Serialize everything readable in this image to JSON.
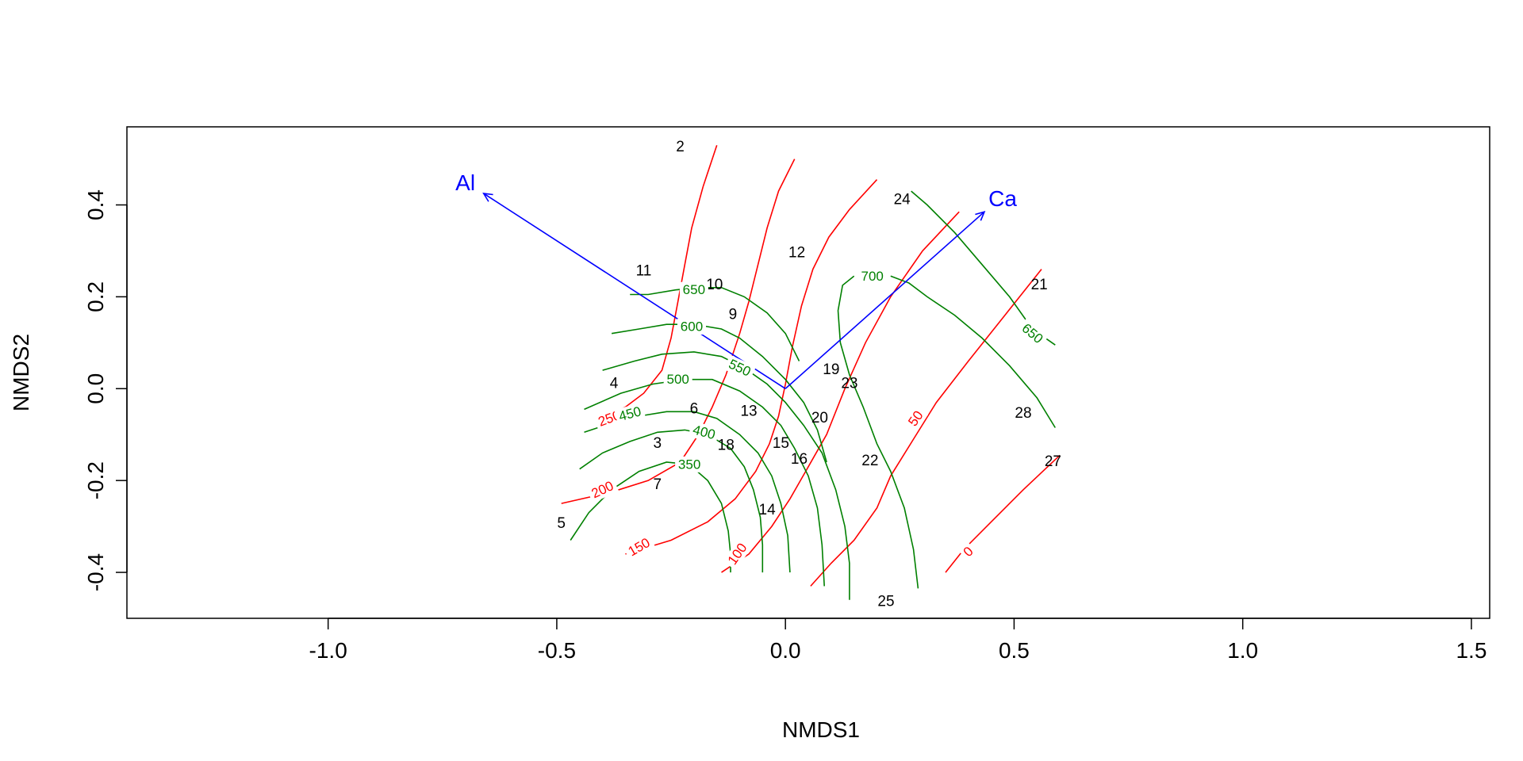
{
  "chart_data": {
    "type": "scatter",
    "title": "",
    "xlabel": "NMDS1",
    "ylabel": "NMDS2",
    "xlim": [
      -1.44,
      1.54
    ],
    "ylim": [
      -0.5,
      0.57
    ],
    "x_ticks": [
      -1.0,
      -0.5,
      0.0,
      0.5,
      1.0,
      1.5
    ],
    "x_tick_labels": [
      "-1.0",
      "-0.5",
      "0.0",
      "0.5",
      "1.0",
      "1.5"
    ],
    "y_ticks": [
      -0.4,
      -0.2,
      0.0,
      0.2,
      0.4
    ],
    "y_tick_labels": [
      "-0.4",
      "-0.2",
      "0.0",
      "0.2",
      "0.4"
    ],
    "grid": false,
    "colors": {
      "sites": "#000000",
      "vectors": "#0000ff",
      "al_contours": "#ff0000",
      "ca_contours": "#008000"
    },
    "sites": [
      {
        "label": "2",
        "x": -0.23,
        "y": 0.525
      },
      {
        "label": "11",
        "x": -0.31,
        "y": 0.255
      },
      {
        "label": "10",
        "x": -0.155,
        "y": 0.225
      },
      {
        "label": "9",
        "x": -0.115,
        "y": 0.16
      },
      {
        "label": "12",
        "x": 0.025,
        "y": 0.295
      },
      {
        "label": "24",
        "x": 0.255,
        "y": 0.41
      },
      {
        "label": "21",
        "x": 0.555,
        "y": 0.225
      },
      {
        "label": "4",
        "x": -0.375,
        "y": 0.01
      },
      {
        "label": "19",
        "x": 0.1,
        "y": 0.04
      },
      {
        "label": "23",
        "x": 0.14,
        "y": 0.01
      },
      {
        "label": "6",
        "x": -0.2,
        "y": -0.045
      },
      {
        "label": "13",
        "x": -0.08,
        "y": -0.05
      },
      {
        "label": "20",
        "x": 0.075,
        "y": -0.065
      },
      {
        "label": "28",
        "x": 0.52,
        "y": -0.055
      },
      {
        "label": "3",
        "x": -0.28,
        "y": -0.12
      },
      {
        "label": "18",
        "x": -0.13,
        "y": -0.125
      },
      {
        "label": "15",
        "x": -0.01,
        "y": -0.12
      },
      {
        "label": "16",
        "x": 0.03,
        "y": -0.155
      },
      {
        "label": "22",
        "x": 0.185,
        "y": -0.158
      },
      {
        "label": "27",
        "x": 0.585,
        "y": -0.16
      },
      {
        "label": "7",
        "x": -0.28,
        "y": -0.21
      },
      {
        "label": "14",
        "x": -0.04,
        "y": -0.265
      },
      {
        "label": "5",
        "x": -0.49,
        "y": -0.295
      },
      {
        "label": "25",
        "x": 0.22,
        "y": -0.465
      }
    ],
    "vectors": [
      {
        "label": "Al",
        "x": -0.66,
        "y": 0.425,
        "label_x": -0.7,
        "label_y": 0.445
      },
      {
        "label": "Ca",
        "x": 0.435,
        "y": 0.385,
        "label_x": 0.475,
        "label_y": 0.41
      }
    ],
    "contour_labels": [
      {
        "text": "650",
        "x": -0.2,
        "y": 0.215,
        "rot": 0,
        "color": "green"
      },
      {
        "text": "600",
        "x": -0.205,
        "y": 0.135,
        "rot": 0,
        "color": "green"
      },
      {
        "text": "550",
        "x": -0.1,
        "y": 0.045,
        "rot": 25,
        "color": "green"
      },
      {
        "text": "500",
        "x": -0.235,
        "y": 0.02,
        "rot": 0,
        "color": "green"
      },
      {
        "text": "250",
        "x": -0.385,
        "y": -0.065,
        "rot": -20,
        "color": "red"
      },
      {
        "text": "450",
        "x": -0.34,
        "y": -0.055,
        "rot": -15,
        "color": "green"
      },
      {
        "text": "400",
        "x": -0.178,
        "y": -0.095,
        "rot": 15,
        "color": "green"
      },
      {
        "text": "350",
        "x": -0.21,
        "y": -0.165,
        "rot": 0,
        "color": "green"
      },
      {
        "text": "200",
        "x": -0.4,
        "y": -0.22,
        "rot": -25,
        "color": "red"
      },
      {
        "text": "150",
        "x": -0.32,
        "y": -0.345,
        "rot": -30,
        "color": "red"
      },
      {
        "text": "100",
        "x": -0.105,
        "y": -0.36,
        "rot": -55,
        "color": "red"
      },
      {
        "text": "700",
        "x": 0.19,
        "y": 0.245,
        "rot": 0,
        "color": "green"
      },
      {
        "text": "650",
        "x": 0.54,
        "y": 0.12,
        "rot": 40,
        "color": "green"
      },
      {
        "text": "50",
        "x": 0.285,
        "y": -0.065,
        "rot": -55,
        "color": "red"
      },
      {
        "text": "0",
        "x": 0.4,
        "y": -0.355,
        "rot": -45,
        "color": "red"
      }
    ],
    "contours": [
      {
        "color": "red",
        "points": [
          [
            -0.15,
            0.53
          ],
          [
            -0.18,
            0.44
          ],
          [
            -0.205,
            0.35
          ],
          [
            -0.22,
            0.27
          ],
          [
            -0.235,
            0.19
          ],
          [
            -0.25,
            0.11
          ],
          [
            -0.27,
            0.04
          ],
          [
            -0.31,
            -0.01
          ],
          [
            -0.35,
            -0.04
          ],
          [
            -0.39,
            -0.06
          ]
        ]
      },
      {
        "color": "red",
        "points": [
          [
            0.02,
            0.5
          ],
          [
            -0.015,
            0.43
          ],
          [
            -0.04,
            0.35
          ],
          [
            -0.06,
            0.27
          ],
          [
            -0.08,
            0.19
          ],
          [
            -0.1,
            0.12
          ],
          [
            -0.13,
            0.03
          ],
          [
            -0.16,
            -0.04
          ],
          [
            -0.19,
            -0.1
          ],
          [
            -0.23,
            -0.16
          ],
          [
            -0.3,
            -0.2
          ],
          [
            -0.38,
            -0.225
          ],
          [
            -0.49,
            -0.25
          ]
        ]
      },
      {
        "color": "red",
        "points": [
          [
            0.2,
            0.455
          ],
          [
            0.14,
            0.39
          ],
          [
            0.095,
            0.33
          ],
          [
            0.06,
            0.26
          ],
          [
            0.035,
            0.18
          ],
          [
            0.015,
            0.09
          ],
          [
            0.0,
            0.01
          ],
          [
            -0.015,
            -0.06
          ],
          [
            -0.035,
            -0.12
          ],
          [
            -0.065,
            -0.18
          ],
          [
            -0.11,
            -0.24
          ],
          [
            -0.17,
            -0.29
          ],
          [
            -0.25,
            -0.33
          ],
          [
            -0.35,
            -0.36
          ]
        ]
      },
      {
        "color": "red",
        "points": [
          [
            0.38,
            0.385
          ],
          [
            0.3,
            0.3
          ],
          [
            0.23,
            0.2
          ],
          [
            0.175,
            0.1
          ],
          [
            0.13,
            0.0
          ],
          [
            0.09,
            -0.1
          ],
          [
            0.05,
            -0.17
          ],
          [
            0.01,
            -0.24
          ],
          [
            -0.03,
            -0.3
          ],
          [
            -0.08,
            -0.36
          ],
          [
            -0.14,
            -0.4
          ]
        ]
      },
      {
        "color": "red",
        "points": [
          [
            0.56,
            0.26
          ],
          [
            0.48,
            0.16
          ],
          [
            0.4,
            0.06
          ],
          [
            0.33,
            -0.03
          ],
          [
            0.28,
            -0.11
          ],
          [
            0.23,
            -0.19
          ],
          [
            0.2,
            -0.26
          ],
          [
            0.15,
            -0.33
          ],
          [
            0.1,
            -0.38
          ],
          [
            0.055,
            -0.43
          ]
        ]
      },
      {
        "color": "red",
        "points": [
          [
            0.6,
            -0.145
          ],
          [
            0.52,
            -0.22
          ],
          [
            0.45,
            -0.29
          ],
          [
            0.39,
            -0.35
          ],
          [
            0.35,
            -0.4
          ]
        ]
      },
      {
        "color": "green",
        "points": [
          [
            -0.34,
            0.205
          ],
          [
            -0.3,
            0.205
          ],
          [
            -0.24,
            0.215
          ],
          [
            -0.19,
            0.22
          ],
          [
            -0.14,
            0.22
          ],
          [
            -0.09,
            0.2
          ],
          [
            -0.04,
            0.165
          ],
          [
            0.0,
            0.12
          ],
          [
            0.03,
            0.06
          ]
        ]
      },
      {
        "color": "green",
        "points": [
          [
            -0.38,
            0.12
          ],
          [
            -0.32,
            0.13
          ],
          [
            -0.26,
            0.14
          ],
          [
            -0.2,
            0.14
          ],
          [
            -0.14,
            0.13
          ],
          [
            -0.1,
            0.11
          ],
          [
            -0.05,
            0.07
          ],
          [
            0.0,
            0.02
          ],
          [
            0.04,
            -0.03
          ],
          [
            0.07,
            -0.09
          ],
          [
            0.09,
            -0.16
          ]
        ]
      },
      {
        "color": "green",
        "points": [
          [
            -0.4,
            0.04
          ],
          [
            -0.33,
            0.06
          ],
          [
            -0.27,
            0.075
          ],
          [
            -0.2,
            0.08
          ],
          [
            -0.14,
            0.07
          ],
          [
            -0.09,
            0.045
          ],
          [
            -0.04,
            0.01
          ],
          [
            0.0,
            -0.03
          ],
          [
            0.04,
            -0.08
          ],
          [
            0.08,
            -0.14
          ],
          [
            0.11,
            -0.22
          ],
          [
            0.13,
            -0.3
          ],
          [
            0.14,
            -0.38
          ],
          [
            0.14,
            -0.46
          ]
        ]
      },
      {
        "color": "green",
        "points": [
          [
            -0.44,
            -0.045
          ],
          [
            -0.36,
            -0.01
          ],
          [
            -0.29,
            0.01
          ],
          [
            -0.22,
            0.02
          ],
          [
            -0.16,
            0.02
          ],
          [
            -0.1,
            -0.005
          ],
          [
            -0.05,
            -0.04
          ],
          [
            -0.01,
            -0.08
          ],
          [
            0.02,
            -0.13
          ],
          [
            0.05,
            -0.19
          ],
          [
            0.07,
            -0.26
          ],
          [
            0.08,
            -0.34
          ],
          [
            0.085,
            -0.43
          ]
        ]
      },
      {
        "color": "green",
        "points": [
          [
            -0.44,
            -0.095
          ],
          [
            -0.38,
            -0.075
          ],
          [
            -0.32,
            -0.06
          ],
          [
            -0.26,
            -0.05
          ],
          [
            -0.2,
            -0.05
          ],
          [
            -0.15,
            -0.065
          ],
          [
            -0.1,
            -0.1
          ],
          [
            -0.06,
            -0.14
          ],
          [
            -0.03,
            -0.19
          ],
          [
            -0.01,
            -0.25
          ],
          [
            0.005,
            -0.32
          ],
          [
            0.01,
            -0.4
          ]
        ]
      },
      {
        "color": "green",
        "points": [
          [
            -0.45,
            -0.175
          ],
          [
            -0.4,
            -0.14
          ],
          [
            -0.34,
            -0.115
          ],
          [
            -0.28,
            -0.095
          ],
          [
            -0.22,
            -0.09
          ],
          [
            -0.17,
            -0.1
          ],
          [
            -0.12,
            -0.13
          ],
          [
            -0.09,
            -0.17
          ],
          [
            -0.07,
            -0.22
          ],
          [
            -0.055,
            -0.28
          ],
          [
            -0.05,
            -0.34
          ],
          [
            -0.05,
            -0.4
          ]
        ]
      },
      {
        "color": "green",
        "points": [
          [
            -0.47,
            -0.33
          ],
          [
            -0.43,
            -0.27
          ],
          [
            -0.38,
            -0.22
          ],
          [
            -0.32,
            -0.18
          ],
          [
            -0.26,
            -0.16
          ],
          [
            -0.21,
            -0.165
          ],
          [
            -0.17,
            -0.2
          ],
          [
            -0.14,
            -0.25
          ],
          [
            -0.125,
            -0.31
          ],
          [
            -0.12,
            -0.36
          ],
          [
            -0.12,
            -0.4
          ]
        ]
      },
      {
        "color": "green",
        "points": [
          [
            0.29,
            -0.435
          ],
          [
            0.28,
            -0.35
          ],
          [
            0.26,
            -0.26
          ],
          [
            0.23,
            -0.18
          ],
          [
            0.2,
            -0.12
          ],
          [
            0.17,
            -0.04
          ],
          [
            0.14,
            0.03
          ],
          [
            0.12,
            0.1
          ],
          [
            0.115,
            0.17
          ],
          [
            0.125,
            0.225
          ],
          [
            0.15,
            0.245
          ]
        ]
      },
      {
        "color": "green",
        "points": [
          [
            0.59,
            -0.085
          ],
          [
            0.55,
            -0.02
          ],
          [
            0.49,
            0.05
          ],
          [
            0.43,
            0.11
          ],
          [
            0.37,
            0.16
          ],
          [
            0.31,
            0.2
          ],
          [
            0.27,
            0.23
          ],
          [
            0.23,
            0.245
          ]
        ]
      },
      {
        "color": "green",
        "points": [
          [
            0.59,
            0.095
          ],
          [
            0.54,
            0.13
          ],
          [
            0.49,
            0.2
          ],
          [
            0.43,
            0.27
          ],
          [
            0.37,
            0.34
          ],
          [
            0.31,
            0.4
          ],
          [
            0.275,
            0.43
          ]
        ]
      }
    ]
  }
}
